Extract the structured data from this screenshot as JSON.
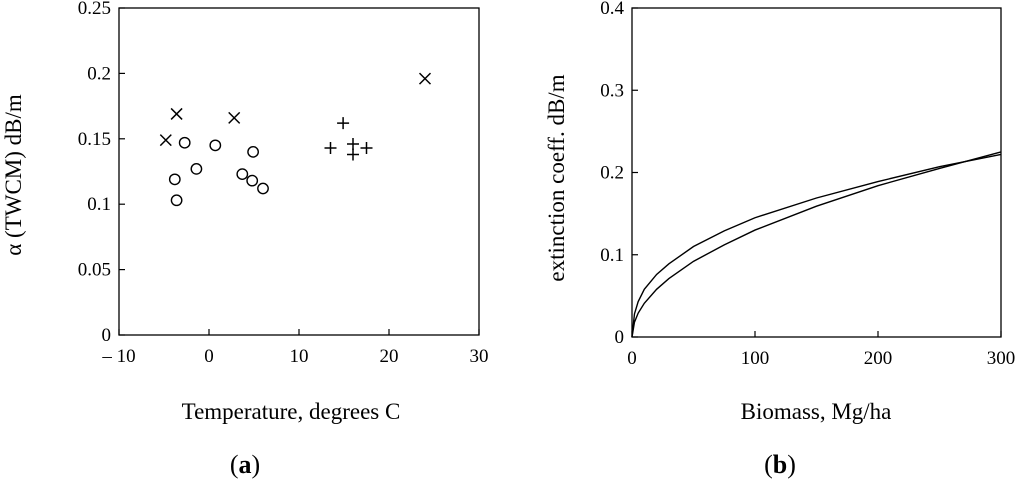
{
  "chart_data": [
    {
      "panel": "a",
      "type": "scatter",
      "xlabel": "Temperature, degrees C",
      "ylabel": "α (TWCM) dB/m",
      "xlim": [
        -10,
        30
      ],
      "ylim": [
        0,
        0.25
      ],
      "xticks": [
        -10,
        0,
        10,
        20,
        30
      ],
      "xtick_labels": [
        "– 10",
        "0",
        "10",
        "20",
        "30"
      ],
      "yticks": [
        0,
        0.05,
        0.1,
        0.15,
        0.2,
        0.25
      ],
      "ytick_labels": [
        "0",
        "0.05",
        "0.1",
        "0.15",
        "0.2",
        "0.25"
      ],
      "grid": false,
      "series": [
        {
          "marker": "x",
          "points": [
            [
              -4.8,
              0.149
            ],
            [
              -3.6,
              0.169
            ],
            [
              2.8,
              0.166
            ],
            [
              24.0,
              0.196
            ]
          ]
        },
        {
          "marker": "o",
          "points": [
            [
              -2.7,
              0.147
            ],
            [
              -3.8,
              0.119
            ],
            [
              -1.4,
              0.127
            ],
            [
              -3.6,
              0.103
            ],
            [
              0.7,
              0.145
            ],
            [
              4.9,
              0.14
            ],
            [
              3.7,
              0.123
            ],
            [
              4.8,
              0.118
            ],
            [
              6.0,
              0.112
            ]
          ]
        },
        {
          "marker": "+",
          "points": [
            [
              13.5,
              0.143
            ],
            [
              14.9,
              0.162
            ],
            [
              16.0,
              0.146
            ],
            [
              16.0,
              0.138
            ],
            [
              17.5,
              0.143
            ]
          ]
        }
      ]
    },
    {
      "panel": "b",
      "type": "line",
      "xlabel": "Biomass, Mg/ha",
      "ylabel": "extinction coeff. dB/m",
      "xlim": [
        0,
        300
      ],
      "ylim": [
        0,
        0.4
      ],
      "xticks": [
        0,
        100,
        200,
        300
      ],
      "xtick_labels": [
        "0",
        "100",
        "200",
        "300"
      ],
      "yticks": [
        0,
        0.1,
        0.2,
        0.3,
        0.4
      ],
      "ytick_labels": [
        "0",
        "0.1",
        "0.2",
        "0.3",
        "0.4"
      ],
      "grid": false,
      "series": [
        {
          "x": [
            0,
            2,
            5,
            10,
            20,
            30,
            50,
            75,
            100,
            150,
            200,
            250,
            300
          ],
          "values": [
            0,
            0.018,
            0.029,
            0.041,
            0.058,
            0.071,
            0.092,
            0.112,
            0.13,
            0.159,
            0.184,
            0.205,
            0.225
          ]
        },
        {
          "x": [
            0,
            2,
            5,
            10,
            20,
            30,
            50,
            75,
            100,
            150,
            200,
            250,
            300
          ],
          "values": [
            0,
            0.028,
            0.043,
            0.058,
            0.076,
            0.089,
            0.11,
            0.129,
            0.145,
            0.169,
            0.189,
            0.207,
            0.222
          ]
        }
      ]
    }
  ],
  "panel_labels": {
    "a": {
      "open": "(",
      "letter": "a",
      "close": ")"
    },
    "b": {
      "open": "(",
      "letter": "b",
      "close": ")"
    }
  }
}
